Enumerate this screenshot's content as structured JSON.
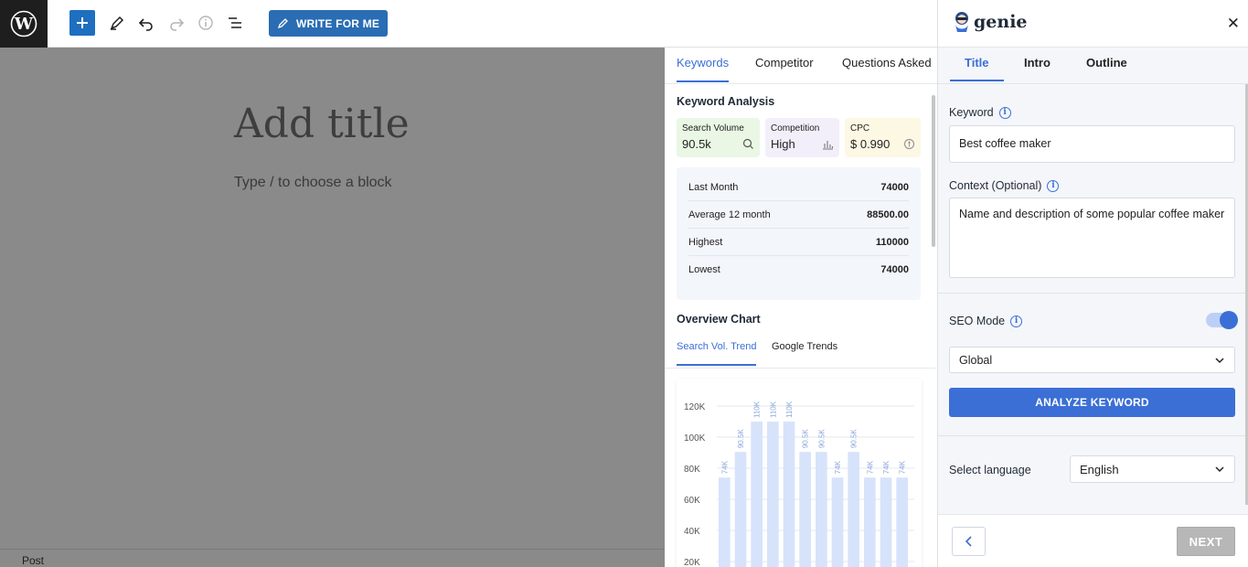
{
  "toolbar": {
    "write_label": "WRITE FOR ME"
  },
  "editor": {
    "title_placeholder": "Add title",
    "block_hint": "Type / to choose a block",
    "footer_label": "Post"
  },
  "keywords_panel": {
    "tabs": [
      "Keywords",
      "Competitor",
      "Questions Asked"
    ],
    "analysis_title": "Keyword Analysis",
    "metrics": {
      "search_volume": {
        "label": "Search Volume",
        "value": "90.5k",
        "bg": "#e9f7e4"
      },
      "competition": {
        "label": "Competition",
        "value": "High",
        "bg": "#f3effa"
      },
      "cpc": {
        "label": "CPC",
        "value": "$ 0.990",
        "bg": "#fdf8e4"
      }
    },
    "stats": [
      {
        "label": "Last Month",
        "value": "74000"
      },
      {
        "label": "Average 12 month",
        "value": "88500.00"
      },
      {
        "label": "Highest",
        "value": "110000"
      },
      {
        "label": "Lowest",
        "value": "74000"
      }
    ],
    "overview_title": "Overview Chart",
    "chart_tabs": [
      "Search Vol. Trend",
      "Google Trends"
    ]
  },
  "chart_data": {
    "type": "bar",
    "values": [
      74000,
      90500,
      110000,
      110000,
      110000,
      90500,
      90500,
      74000,
      90500,
      74000,
      74000,
      74000
    ],
    "data_labels": [
      "74K",
      "90.5K",
      "110K",
      "110K",
      "110K",
      "90.5K",
      "90.5K",
      "74K",
      "90.5K",
      "74K",
      "74K",
      "74K"
    ],
    "y_ticks": [
      "120K",
      "100K",
      "80K",
      "60K",
      "40K",
      "20K"
    ],
    "ylim": [
      0,
      120000
    ],
    "bar_color": "#d7e3fb",
    "label_color": "#8aa6dc"
  },
  "genie": {
    "logo_text": "genie",
    "tabs": [
      "Title",
      "Intro",
      "Outline"
    ],
    "keyword_label": "Keyword",
    "keyword_value": "Best coffee maker",
    "context_label": "Context (Optional)",
    "context_value": "Name and description of some popular coffee maker",
    "seo_label": "SEO Mode",
    "seo_mode": "Global",
    "analyze_label": "ANALYZE KEYWORD",
    "language_label": "Select language",
    "language_value": "English",
    "next_label": "NEXT"
  }
}
